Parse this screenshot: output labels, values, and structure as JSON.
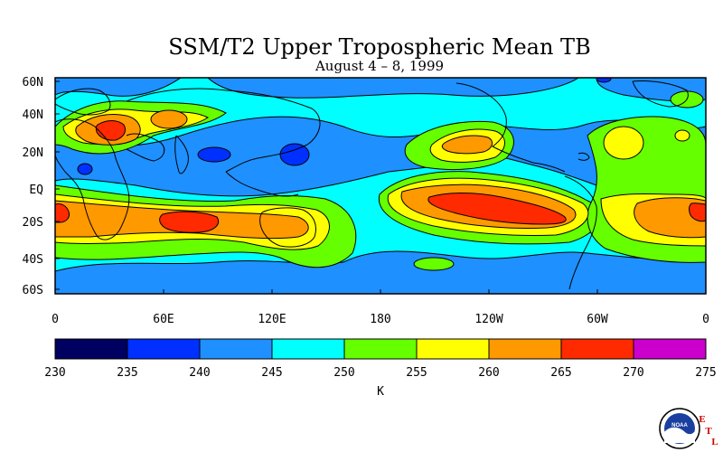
{
  "title": "SSM/T2 Upper Tropospheric Mean TB",
  "subtitle": "August 4 – 8, 1999",
  "lat_labels": [
    "60N",
    "40N",
    "20N",
    "EQ",
    "20S",
    "40S",
    "60S"
  ],
  "lon_labels": [
    "0",
    "60E",
    "120E",
    "180",
    "120W",
    "60W",
    "0"
  ],
  "colorbar": {
    "ticks": [
      "230",
      "235",
      "240",
      "245",
      "250",
      "255",
      "260",
      "265",
      "270",
      "275"
    ],
    "colors": [
      "#000060",
      "#0030ff",
      "#1e90ff",
      "#00ffff",
      "#66ff00",
      "#ffff00",
      "#ff9900",
      "#ff2a00",
      "#cc00cc"
    ],
    "unit": "K"
  },
  "logo": {
    "name": "noaa-logo",
    "text": "NOAA",
    "side_letters": [
      "E",
      "T",
      "L"
    ]
  }
}
